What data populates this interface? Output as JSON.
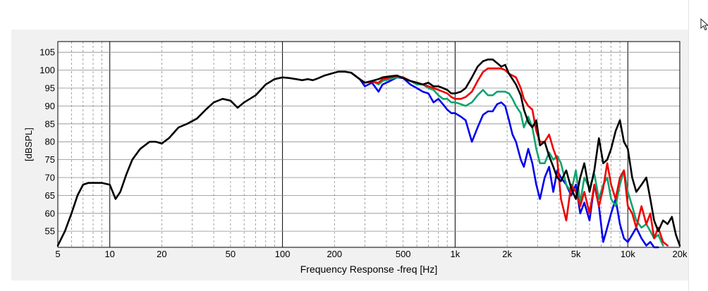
{
  "chart_data": {
    "type": "line",
    "title": "",
    "xlabel": "Frequency Response -freq [Hz]",
    "ylabel": "[dBSPL]",
    "x_scale": "log",
    "xlim": [
      5,
      20000
    ],
    "ylim": [
      50.5,
      108
    ],
    "grid": true,
    "legend": "none",
    "x_ticks": [
      {
        "value": 5,
        "label": "5"
      },
      {
        "value": 10,
        "label": "10"
      },
      {
        "value": 20,
        "label": "20"
      },
      {
        "value": 50,
        "label": "50"
      },
      {
        "value": 100,
        "label": "100"
      },
      {
        "value": 200,
        "label": "200"
      },
      {
        "value": 500,
        "label": "500"
      },
      {
        "value": 1000,
        "label": "1k"
      },
      {
        "value": 2000,
        "label": "2k"
      },
      {
        "value": 5000,
        "label": "5k"
      },
      {
        "value": 10000,
        "label": "10k"
      },
      {
        "value": 20000,
        "label": "20k"
      }
    ],
    "y_ticks": [
      55,
      60,
      65,
      70,
      75,
      80,
      85,
      90,
      95,
      100,
      105
    ],
    "series": [
      {
        "color": "#0000ee",
        "x": [
          250,
          280,
          300,
          330,
          360,
          380,
          420,
          460,
          500,
          550,
          600,
          650,
          700,
          750,
          800,
          850,
          900,
          950,
          1000,
          1080,
          1150,
          1250,
          1350,
          1450,
          1550,
          1650,
          1750,
          1850,
          1950,
          2050,
          2150,
          2250,
          2400,
          2500,
          2650,
          2800,
          2950,
          3100,
          3300,
          3500,
          3700,
          3900,
          4100,
          4400,
          4700,
          5000,
          5300,
          5600,
          6000,
          6400,
          6800,
          7200,
          7600,
          8000,
          8500,
          9000,
          9500,
          10000,
          10600,
          11200,
          12000,
          12800,
          13500,
          14200,
          15000
        ],
        "y": [
          99.3,
          97.5,
          95.5,
          96.5,
          94,
          96,
          97,
          98,
          97.8,
          96,
          95,
          94,
          93.5,
          91,
          92,
          90.5,
          89,
          88,
          88,
          87,
          86,
          80,
          84,
          87.5,
          88.5,
          88.5,
          90.5,
          91,
          90,
          86,
          82,
          80,
          75,
          73,
          78,
          74,
          68,
          64,
          70,
          73,
          66,
          72,
          70,
          68,
          65,
          68,
          60,
          63,
          58,
          68,
          62,
          52,
          56,
          60,
          64,
          57,
          53,
          52,
          54,
          56,
          53,
          51,
          52,
          50.5,
          50.5
        ]
      },
      {
        "color": "#11a36e",
        "x": [
          250,
          280,
          300,
          330,
          360,
          380,
          420,
          460,
          500,
          550,
          600,
          650,
          700,
          750,
          800,
          850,
          900,
          950,
          1000,
          1080,
          1150,
          1250,
          1350,
          1450,
          1550,
          1650,
          1750,
          1850,
          1950,
          2050,
          2150,
          2250,
          2400,
          2500,
          2650,
          2800,
          2950,
          3100,
          3300,
          3500,
          3700,
          3900,
          4100,
          4400,
          4700,
          5000,
          5300,
          5600,
          6000,
          6400,
          6800,
          7200,
          7600,
          8000,
          8500,
          9000,
          9500,
          10000,
          10600,
          11200,
          12000,
          12800,
          13500,
          14200,
          15000,
          16000
        ],
        "y": [
          99.3,
          97.5,
          96.5,
          97,
          96,
          97,
          97.5,
          98,
          98,
          97,
          96,
          96,
          95,
          94.5,
          93,
          92,
          92,
          91,
          91,
          90.5,
          90,
          91,
          93,
          94.5,
          93,
          93,
          94,
          94,
          94,
          93.5,
          92,
          90,
          88,
          84,
          87,
          84,
          78,
          74,
          74,
          77,
          75,
          76,
          74,
          68,
          66,
          72,
          63,
          70,
          67,
          71,
          64,
          68,
          70,
          64,
          62,
          68,
          72,
          66,
          62,
          58,
          56,
          57,
          55,
          53,
          54,
          51
        ]
      },
      {
        "color": "#ee0000",
        "x": [
          250,
          280,
          300,
          330,
          360,
          380,
          420,
          460,
          500,
          550,
          600,
          650,
          700,
          750,
          800,
          850,
          900,
          950,
          1000,
          1080,
          1150,
          1250,
          1350,
          1450,
          1550,
          1650,
          1750,
          1850,
          1950,
          2050,
          2150,
          2250,
          2400,
          2500,
          2650,
          2800,
          2950,
          3100,
          3300,
          3500,
          3700,
          3900,
          4100,
          4400,
          4700,
          5000,
          5300,
          5600,
          6000,
          6400,
          6800,
          7200,
          7600,
          8000,
          8500,
          9000,
          9500,
          10000,
          10600,
          11200,
          12000,
          12800,
          13500,
          14200,
          15000,
          16000,
          17000
        ],
        "y": [
          99.3,
          97.5,
          96.5,
          96.8,
          96.5,
          97.5,
          98,
          98.3,
          98,
          97,
          96.5,
          96,
          95.5,
          95,
          94.5,
          94,
          93.5,
          92.5,
          92,
          92,
          92.5,
          94,
          97,
          99.5,
          100.5,
          100.5,
          100.5,
          100.5,
          100,
          99,
          98.5,
          98,
          95,
          92,
          90,
          89,
          83,
          80,
          80,
          82,
          78,
          75,
          64,
          58,
          68,
          66,
          62,
          66,
          60,
          68,
          62,
          67,
          74,
          68,
          64,
          70,
          72,
          62,
          60,
          56,
          62,
          57,
          60,
          53,
          56,
          52,
          51
        ]
      },
      {
        "color": "#000000",
        "x": [
          5,
          5.5,
          6,
          6.5,
          7,
          7.5,
          8,
          9,
          10,
          10.8,
          11.5,
          12.5,
          13.5,
          15,
          17,
          18.5,
          20,
          22,
          25,
          28,
          32,
          36,
          40,
          45,
          50,
          55,
          60,
          70,
          80,
          90,
          100,
          110,
          120,
          130,
          140,
          150,
          160,
          175,
          190,
          210,
          230,
          250,
          280,
          300,
          330,
          360,
          380,
          420,
          460,
          500,
          550,
          600,
          650,
          700,
          750,
          800,
          850,
          900,
          950,
          1000,
          1080,
          1150,
          1250,
          1350,
          1450,
          1550,
          1650,
          1750,
          1850,
          1950,
          2050,
          2150,
          2250,
          2400,
          2500,
          2650,
          2800,
          2950,
          3100,
          3300,
          3500,
          3700,
          3900,
          4100,
          4400,
          4700,
          5000,
          5300,
          5600,
          6000,
          6400,
          6800,
          7200,
          7600,
          8000,
          8500,
          9000,
          9500,
          10000,
          10600,
          11200,
          12000,
          12800,
          13500,
          14200,
          15000,
          16000,
          17000,
          18000,
          19000,
          20000
        ],
        "y": [
          51,
          55,
          60,
          65,
          68,
          68.5,
          68.5,
          68.5,
          68,
          64,
          66,
          71,
          75,
          78,
          80,
          80,
          79.5,
          81,
          84,
          85,
          86.5,
          89,
          91,
          92,
          91.5,
          89.5,
          91,
          93,
          96,
          97.5,
          98,
          97.8,
          97.5,
          97.2,
          97.5,
          97.2,
          97.7,
          98.5,
          99,
          99.6,
          99.6,
          99.3,
          97.5,
          96.5,
          97,
          97.5,
          98,
          98.3,
          98.5,
          97.8,
          97,
          96.5,
          96,
          96.5,
          95.5,
          95.5,
          95,
          94.5,
          93.5,
          93.5,
          94,
          95,
          98,
          101,
          102.5,
          103,
          103,
          102,
          101,
          101.5,
          99,
          97.5,
          96,
          93,
          89,
          85.5,
          84,
          86,
          79,
          80,
          76,
          73,
          70,
          69,
          72,
          67,
          64,
          70,
          74,
          66,
          72,
          81,
          74,
          75,
          78,
          83,
          86,
          80,
          78,
          70,
          66,
          68,
          70,
          64,
          58,
          55,
          58,
          57,
          59,
          54,
          51
        ]
      }
    ]
  }
}
